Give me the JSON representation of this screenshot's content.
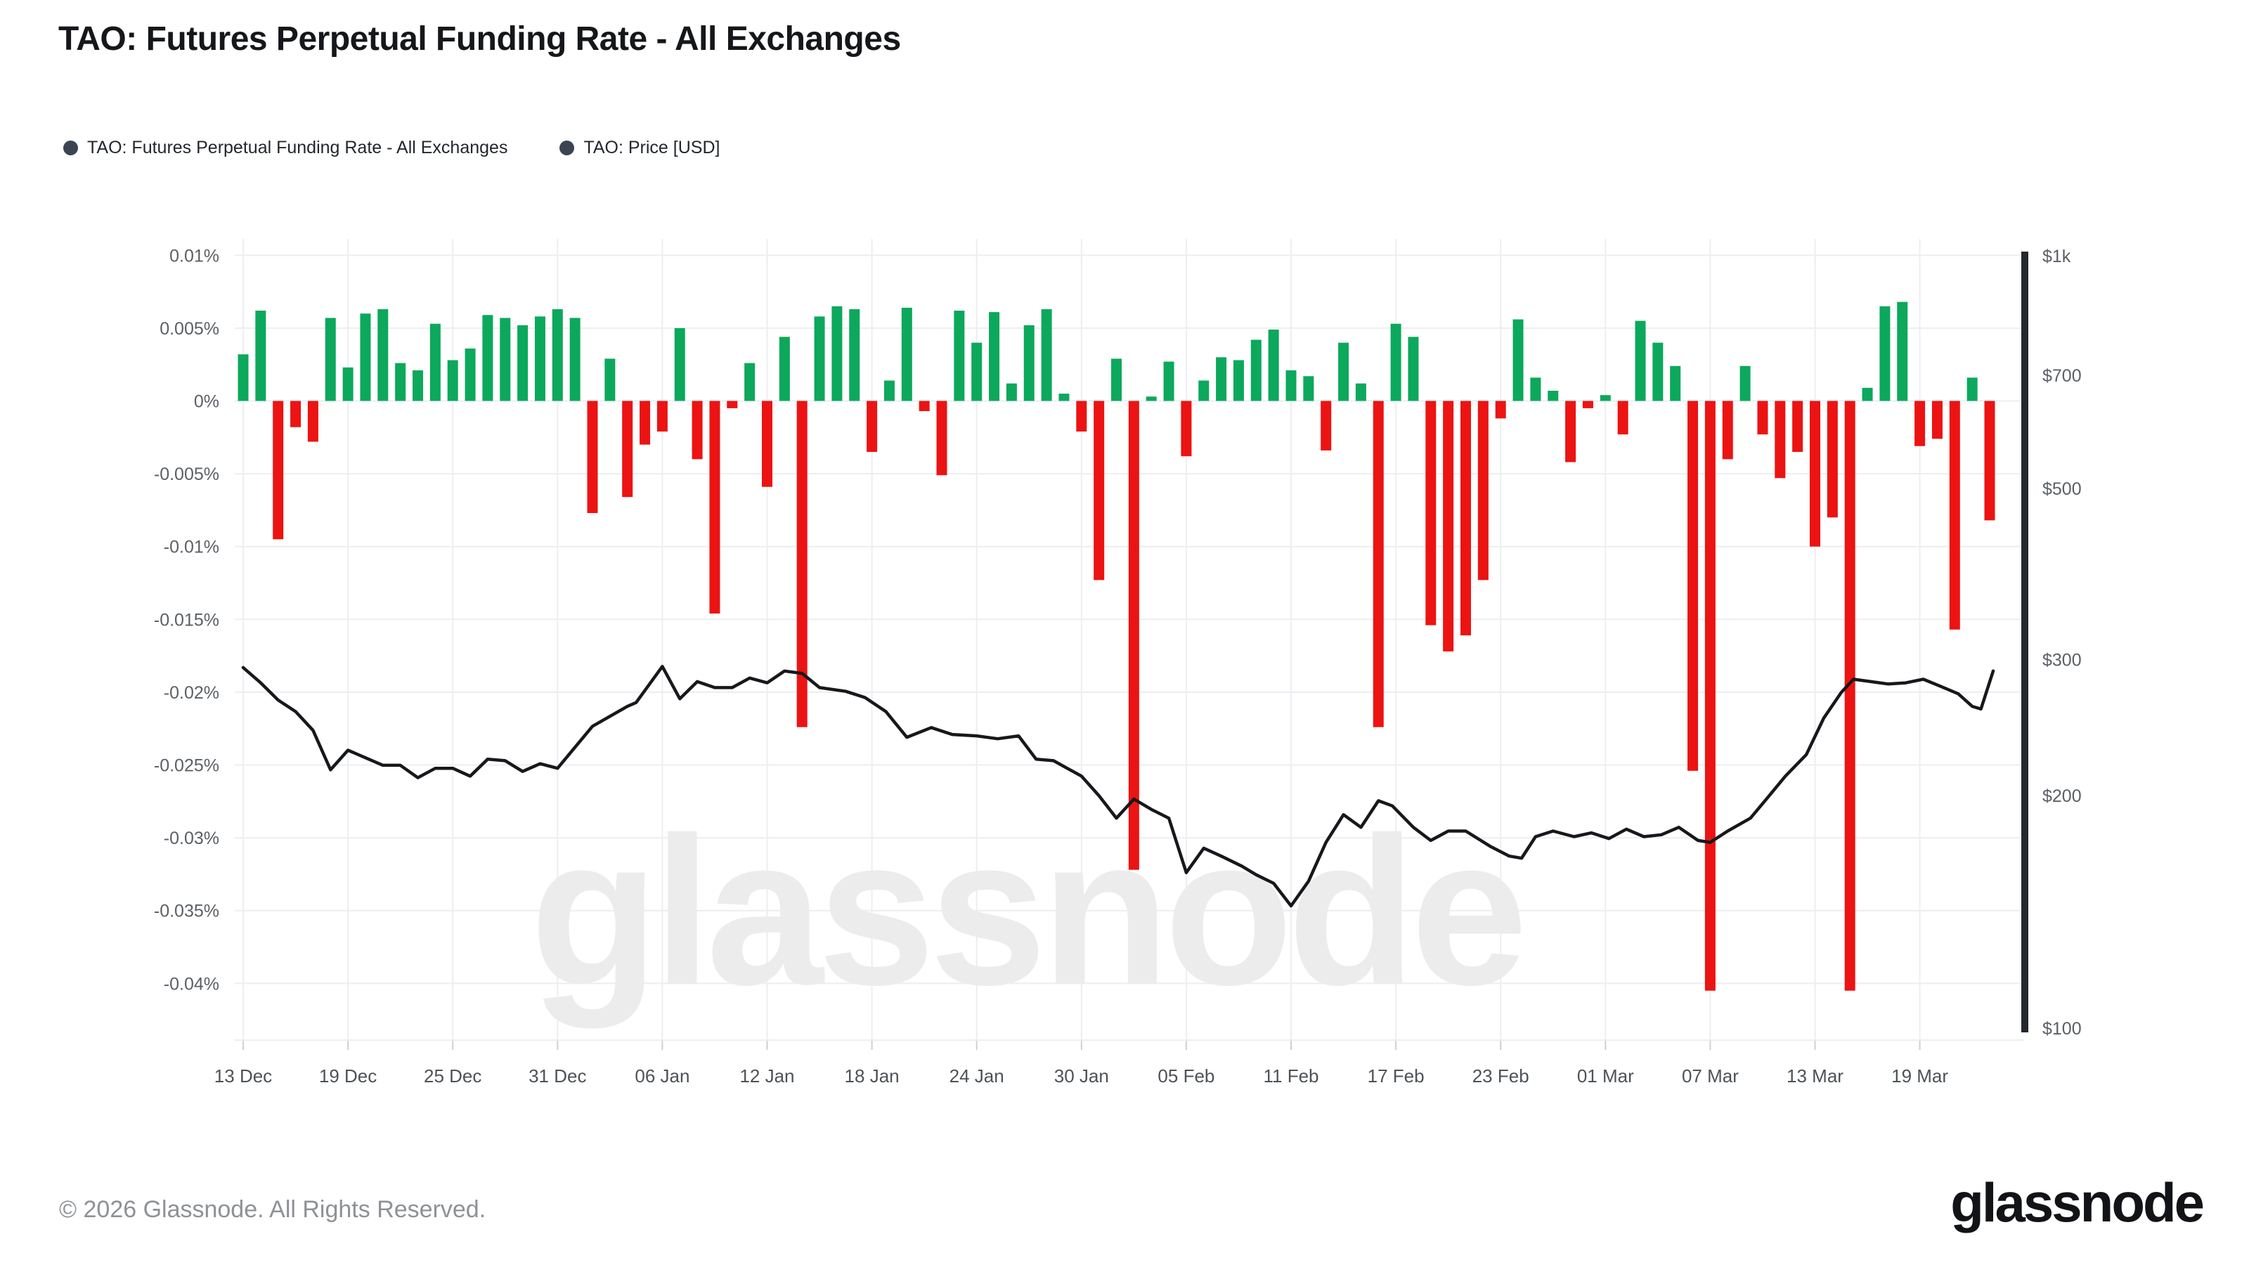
{
  "header": {
    "title": "TAO: Futures Perpetual Funding Rate - All Exchanges"
  },
  "legend": [
    {
      "label": "TAO: Futures Perpetual Funding Rate - All Exchanges",
      "marker_color": "#3b4450"
    },
    {
      "label": "TAO: Price [USD]",
      "marker_color": "#3b4450"
    }
  ],
  "footer": {
    "copyright": "© 2026 Glassnode. All Rights Reserved."
  },
  "brand": {
    "logo_text": "glassnode"
  },
  "watermark": {
    "text": "glassnode",
    "color": "#ececec"
  },
  "chart_data": {
    "type": "bar",
    "subtype": "dual-axis bar + log-scale line",
    "title": "TAO: Futures Perpetual Funding Rate - All Exchanges",
    "grid": true,
    "x_start_label": "13 Dec",
    "x_tick_labels": [
      "13 Dec",
      "19 Dec",
      "25 Dec",
      "31 Dec",
      "06 Jan",
      "12 Jan",
      "18 Jan",
      "24 Jan",
      "30 Jan",
      "05 Feb",
      "11 Feb",
      "17 Feb",
      "23 Feb",
      "01 Mar",
      "07 Mar",
      "13 Mar",
      "19 Mar"
    ],
    "x_tick_day_interval": 6,
    "left_axis": {
      "title": "Funding rate (%)",
      "tick_labels": [
        "0.01%",
        "0.005%",
        "0%",
        "-0.005%",
        "-0.01%",
        "-0.015%",
        "-0.02%",
        "-0.025%",
        "-0.03%",
        "-0.035%",
        "-0.04%"
      ],
      "tick_values": [
        0.01,
        0.005,
        0,
        -0.005,
        -0.01,
        -0.015,
        -0.02,
        -0.025,
        -0.03,
        -0.035,
        -0.04
      ],
      "range": [
        -0.04,
        0.01
      ]
    },
    "right_axis": {
      "title": "Price (USD)",
      "scale": "log",
      "tick_labels": [
        "$1k",
        "$700",
        "$500",
        "$300",
        "$200",
        "$100"
      ],
      "tick_values": [
        1000,
        700,
        500,
        300,
        200,
        100
      ],
      "range": [
        100,
        1000
      ]
    },
    "series": [
      {
        "name": "TAO: Futures Perpetual Funding Rate - All Exchanges",
        "type": "bar",
        "axis": "left",
        "unit": "%",
        "positive_color": "#0ca85c",
        "negative_color": "#ec1313",
        "values": [
          0.0032,
          0.0062,
          -0.0095,
          -0.0018,
          -0.0028,
          0.0057,
          0.0023,
          0.006,
          0.0063,
          0.0026,
          0.0021,
          0.0053,
          0.0028,
          0.0036,
          0.0059,
          0.0057,
          0.0052,
          0.0058,
          0.0063,
          0.0057,
          -0.0077,
          0.0029,
          -0.0066,
          -0.003,
          -0.0021,
          0.005,
          -0.004,
          -0.0146,
          -0.0005,
          0.0026,
          -0.0059,
          0.0044,
          -0.0224,
          0.0058,
          0.0065,
          0.0063,
          -0.0035,
          0.0014,
          0.0064,
          -0.0007,
          -0.0051,
          0.0062,
          0.004,
          0.0061,
          0.0012,
          0.0052,
          0.0063,
          0.0005,
          -0.0021,
          -0.0123,
          0.0029,
          -0.0322,
          0.0003,
          0.0027,
          -0.0038,
          0.0014,
          0.003,
          0.0028,
          0.0042,
          0.0049,
          0.0021,
          0.0017,
          -0.0034,
          0.004,
          0.0012,
          -0.0224,
          0.0053,
          0.0044,
          -0.0154,
          -0.0172,
          -0.0161,
          -0.0123,
          -0.0012,
          0.0056,
          0.0016,
          0.0007,
          -0.0042,
          -0.0005,
          0.0004,
          -0.0023,
          0.0055,
          0.004,
          0.0024,
          -0.0254,
          -0.0405,
          -0.004,
          0.0024,
          -0.0023,
          -0.0053,
          -0.0035,
          -0.01,
          -0.008,
          -0.0405,
          0.0009,
          0.0065,
          0.0068,
          -0.0031,
          -0.0026,
          -0.0157,
          0.0016,
          -0.0082
        ]
      },
      {
        "name": "TAO: Price [USD]",
        "type": "line",
        "axis": "right",
        "unit": "USD",
        "color": "#17181b",
        "points": [
          [
            0,
            293
          ],
          [
            1,
            280
          ],
          [
            2,
            266
          ],
          [
            3,
            257
          ],
          [
            4,
            243
          ],
          [
            5,
            216
          ],
          [
            6,
            229
          ],
          [
            8,
            219
          ],
          [
            9,
            219
          ],
          [
            10,
            211
          ],
          [
            11,
            217
          ],
          [
            12,
            217
          ],
          [
            13,
            212
          ],
          [
            14,
            223
          ],
          [
            15,
            222
          ],
          [
            16,
            215
          ],
          [
            17,
            220
          ],
          [
            18,
            217
          ],
          [
            20,
            246
          ],
          [
            22,
            261
          ],
          [
            22.5,
            264
          ],
          [
            24,
            294
          ],
          [
            25,
            267
          ],
          [
            26,
            281
          ],
          [
            27,
            276
          ],
          [
            28,
            276
          ],
          [
            29,
            284
          ],
          [
            30,
            280
          ],
          [
            31,
            290
          ],
          [
            32,
            288
          ],
          [
            33,
            276
          ],
          [
            34.5,
            273
          ],
          [
            35.6,
            268
          ],
          [
            36.8,
            257
          ],
          [
            38,
            238
          ],
          [
            39.4,
            245
          ],
          [
            40.6,
            240
          ],
          [
            42,
            239
          ],
          [
            43.2,
            237
          ],
          [
            44.4,
            239
          ],
          [
            45.4,
            223
          ],
          [
            46.4,
            222
          ],
          [
            48,
            212
          ],
          [
            49,
            200
          ],
          [
            50,
            187
          ],
          [
            51,
            198
          ],
          [
            52,
            192
          ],
          [
            53,
            187
          ],
          [
            54,
            159
          ],
          [
            55,
            171
          ],
          [
            56,
            167
          ],
          [
            57.2,
            162
          ],
          [
            58,
            158
          ],
          [
            59,
            154
          ],
          [
            60,
            144
          ],
          [
            61,
            155
          ],
          [
            62,
            174
          ],
          [
            63,
            189
          ],
          [
            64,
            182
          ],
          [
            65,
            197
          ],
          [
            65.8,
            194
          ],
          [
            67,
            182
          ],
          [
            68,
            175
          ],
          [
            69,
            180
          ],
          [
            70,
            180
          ],
          [
            71.4,
            172
          ],
          [
            72.5,
            167
          ],
          [
            73.2,
            166
          ],
          [
            74,
            177
          ],
          [
            75,
            180
          ],
          [
            76.2,
            177
          ],
          [
            77.2,
            179
          ],
          [
            78.2,
            176
          ],
          [
            79.2,
            181
          ],
          [
            80.2,
            177
          ],
          [
            81.2,
            178
          ],
          [
            82.2,
            182
          ],
          [
            83.3,
            175
          ],
          [
            84,
            174
          ],
          [
            85,
            180
          ],
          [
            86.3,
            187
          ],
          [
            87.3,
            199
          ],
          [
            88.3,
            212
          ],
          [
            89.5,
            226
          ],
          [
            90.5,
            252
          ],
          [
            91.5,
            272
          ],
          [
            92.2,
            283
          ],
          [
            93.2,
            281
          ],
          [
            94.2,
            279
          ],
          [
            95.2,
            280
          ],
          [
            96.2,
            283
          ],
          [
            97.2,
            277
          ],
          [
            98.2,
            271
          ],
          [
            99,
            261
          ],
          [
            99.5,
            259
          ],
          [
            100.2,
            290
          ]
        ]
      }
    ],
    "style": {
      "grid_color": "#eceef1",
      "axis_tick_color": "#cdd1d5",
      "axis_spine_color": "#25282c",
      "label_color": "#5b6066",
      "x_label_color": "#4d5257"
    }
  }
}
